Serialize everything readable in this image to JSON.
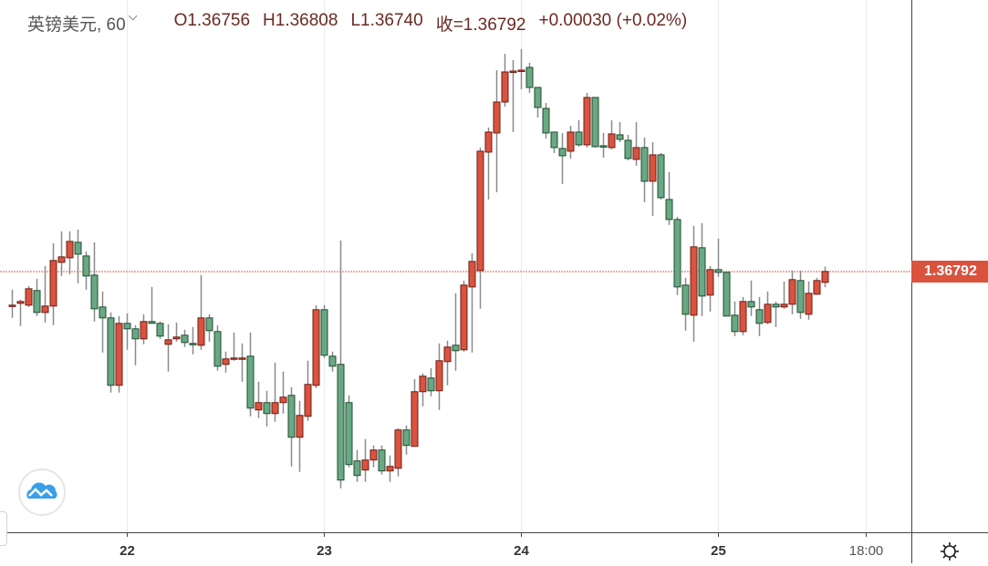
{
  "header": {
    "symbol": "英镑美元, 60",
    "open": "O1.36756",
    "high": "H1.36808",
    "low": "L1.36740",
    "close": "收=1.36792",
    "change": "+0.00030 (+0.02%)"
  },
  "colors": {
    "up": "#d9533f",
    "up_border": "#6e1c14",
    "down": "#6aa884",
    "down_border": "#1e4d31",
    "wick": "#8a8a8a",
    "price_line": "#e0604a",
    "grid": "#e3eef6"
  },
  "icons": {
    "logo": "cloud-chart-logo-icon",
    "settings": "gear-icon",
    "interval_dropdown": "chevron-down-icon"
  },
  "chart_data": {
    "type": "candlestick",
    "interval": "60",
    "up_color_convention": "red-up-green-down",
    "ylim": [
      1.3593,
      1.37686
    ],
    "current_price_label": "1.36792",
    "current_price": 1.36792,
    "x_tick_labels": [
      {
        "label": "22",
        "time": "22 00:00"
      },
      {
        "label": "23",
        "time": "23 00:00"
      },
      {
        "label": "24",
        "time": "24 00:00"
      },
      {
        "label": "25",
        "time": "25 00:00"
      },
      {
        "label": "18:00",
        "time": "25 18:00"
      }
    ],
    "grid": true,
    "times": [
      "21 10:00",
      "21 11:00",
      "21 12:00",
      "21 13:00",
      "21 14:00",
      "21 15:00",
      "21 16:00",
      "21 17:00",
      "21 18:00",
      "21 19:00",
      "21 20:00",
      "21 21:00",
      "21 22:00",
      "21 23:00",
      "22 00:00",
      "22 01:00",
      "22 02:00",
      "22 03:00",
      "22 04:00",
      "22 05:00",
      "22 06:00",
      "22 07:00",
      "22 08:00",
      "22 09:00",
      "22 10:00",
      "22 11:00",
      "22 12:00",
      "22 13:00",
      "22 14:00",
      "22 15:00",
      "22 16:00",
      "22 17:00",
      "22 18:00",
      "22 19:00",
      "22 20:00",
      "22 21:00",
      "22 22:00",
      "22 23:00",
      "23 00:00",
      "23 01:00",
      "23 02:00",
      "23 03:00",
      "23 04:00",
      "23 05:00",
      "23 06:00",
      "23 07:00",
      "23 08:00",
      "23 09:00",
      "23 10:00",
      "23 11:00",
      "23 12:00",
      "23 13:00",
      "23 14:00",
      "23 15:00",
      "23 16:00",
      "23 17:00",
      "23 18:00",
      "23 19:00",
      "23 20:00",
      "23 21:00",
      "23 22:00",
      "23 23:00",
      "24 00:00",
      "24 01:00",
      "24 02:00",
      "24 03:00",
      "24 04:00",
      "24 05:00",
      "24 06:00",
      "24 07:00",
      "24 08:00",
      "24 09:00",
      "24 10:00",
      "24 11:00",
      "24 12:00",
      "24 13:00",
      "24 14:00",
      "24 15:00",
      "24 16:00",
      "24 17:00",
      "24 18:00",
      "24 19:00",
      "24 20:00",
      "24 21:00",
      "24 22:00",
      "24 23:00",
      "25 00:00",
      "25 01:00",
      "25 02:00",
      "25 03:00",
      "25 04:00",
      "25 05:00",
      "25 06:00",
      "25 07:00",
      "25 08:00",
      "25 09:00",
      "25 10:00",
      "25 11:00",
      "25 12:00",
      "25 13:00"
    ],
    "ohlc": [
      [
        1.36678,
        1.36732,
        1.36639,
        1.36681
      ],
      [
        1.36687,
        1.36699,
        1.36612,
        1.36693
      ],
      [
        1.36681,
        1.36744,
        1.36675,
        1.36735
      ],
      [
        1.36729,
        1.36768,
        1.36645,
        1.36657
      ],
      [
        1.36657,
        1.3681,
        1.36624,
        1.36678
      ],
      [
        1.36678,
        1.36885,
        1.36615,
        1.36828
      ],
      [
        1.36822,
        1.36924,
        1.36777,
        1.3684
      ],
      [
        1.36837,
        1.36924,
        1.36783,
        1.36891
      ],
      [
        1.36888,
        1.3693,
        1.36753,
        1.36849
      ],
      [
        1.36843,
        1.36858,
        1.36732,
        1.36777
      ],
      [
        1.3678,
        1.36888,
        1.36627,
        1.36669
      ],
      [
        1.36675,
        1.36726,
        1.36525,
        1.36639
      ],
      [
        1.36639,
        1.36657,
        1.36393,
        1.36417
      ],
      [
        1.36417,
        1.36645,
        1.36393,
        1.36621
      ],
      [
        1.36621,
        1.36654,
        1.36534,
        1.36603
      ],
      [
        1.36603,
        1.36615,
        1.36483,
        1.3657
      ],
      [
        1.3657,
        1.36651,
        1.36552,
        1.36627
      ],
      [
        1.36627,
        1.36741,
        1.36624,
        1.36621
      ],
      [
        1.36621,
        1.36627,
        1.3657,
        1.36579
      ],
      [
        1.36552,
        1.36618,
        1.36462,
        1.36567
      ],
      [
        1.3657,
        1.36624,
        1.36561,
        1.36576
      ],
      [
        1.36582,
        1.366,
        1.36543,
        1.36558
      ],
      [
        1.36555,
        1.36609,
        1.36519,
        1.36552
      ],
      [
        1.36549,
        1.3678,
        1.36534,
        1.36639
      ],
      [
        1.36639,
        1.36651,
        1.36561,
        1.36597
      ],
      [
        1.36594,
        1.36615,
        1.36465,
        1.3648
      ],
      [
        1.36486,
        1.36528,
        1.36459,
        1.36504
      ],
      [
        1.36504,
        1.36591,
        1.36498,
        1.36507
      ],
      [
        1.36504,
        1.36555,
        1.36429,
        1.36507
      ],
      [
        1.36513,
        1.36591,
        1.36315,
        1.36342
      ],
      [
        1.36336,
        1.36429,
        1.36309,
        1.3636
      ],
      [
        1.3636,
        1.36399,
        1.36282,
        1.36324
      ],
      [
        1.36324,
        1.36492,
        1.36297,
        1.3636
      ],
      [
        1.3636,
        1.36462,
        1.36324,
        1.36378
      ],
      [
        1.36384,
        1.36411,
        1.3615,
        1.36246
      ],
      [
        1.36246,
        1.36366,
        1.36132,
        1.36318
      ],
      [
        1.36315,
        1.36498,
        1.363,
        1.3642
      ],
      [
        1.36417,
        1.36681,
        1.36408,
        1.36666
      ],
      [
        1.36666,
        1.36681,
        1.36507,
        1.36516
      ],
      [
        1.36513,
        1.36528,
        1.36462,
        1.3648
      ],
      [
        1.36486,
        1.36894,
        1.36078,
        1.36105
      ],
      [
        1.3636,
        1.36384,
        1.36147,
        1.36156
      ],
      [
        1.36168,
        1.36204,
        1.36099,
        1.3612
      ],
      [
        1.36138,
        1.3624,
        1.36099,
        1.36171
      ],
      [
        1.36171,
        1.36219,
        1.36147,
        1.36204
      ],
      [
        1.36204,
        1.36219,
        1.36123,
        1.36135
      ],
      [
        1.36135,
        1.36186,
        1.36099,
        1.3615
      ],
      [
        1.36144,
        1.36276,
        1.36117,
        1.3627
      ],
      [
        1.3627,
        1.36285,
        1.36189,
        1.36219
      ],
      [
        1.36216,
        1.36438,
        1.36216,
        1.36396
      ],
      [
        1.36396,
        1.36456,
        1.36348,
        1.36447
      ],
      [
        1.36441,
        1.36474,
        1.36381,
        1.36399
      ],
      [
        1.36399,
        1.36555,
        1.36336,
        1.36498
      ],
      [
        1.36495,
        1.36564,
        1.36417,
        1.36543
      ],
      [
        1.36549,
        1.3672,
        1.36465,
        1.36531
      ],
      [
        1.36534,
        1.36762,
        1.36528,
        1.36747
      ],
      [
        1.36741,
        1.36852,
        1.36525,
        1.36825
      ],
      [
        1.36795,
        1.372,
        1.36669,
        1.37188
      ],
      [
        1.37185,
        1.37266,
        1.37029,
        1.37251
      ],
      [
        1.37248,
        1.37455,
        1.37053,
        1.3735
      ],
      [
        1.3735,
        1.37509,
        1.37335,
        1.37449
      ],
      [
        1.37449,
        1.37488,
        1.37251,
        1.37452
      ],
      [
        1.37452,
        1.37524,
        1.37392,
        1.37455
      ],
      [
        1.37464,
        1.37479,
        1.3738,
        1.37398
      ],
      [
        1.37398,
        1.37398,
        1.37299,
        1.37332
      ],
      [
        1.37329,
        1.37347,
        1.3723,
        1.37248
      ],
      [
        1.37251,
        1.37251,
        1.37182,
        1.372
      ],
      [
        1.37197,
        1.37248,
        1.3708,
        1.37173
      ],
      [
        1.37188,
        1.37272,
        1.37164,
        1.37251
      ],
      [
        1.37251,
        1.3729,
        1.37203,
        1.37209
      ],
      [
        1.37209,
        1.3738,
        1.372,
        1.37365
      ],
      [
        1.37365,
        1.37365,
        1.372,
        1.37203
      ],
      [
        1.37206,
        1.37248,
        1.37167,
        1.37203
      ],
      [
        1.372,
        1.3729,
        1.37194,
        1.37245
      ],
      [
        1.37242,
        1.37284,
        1.37218,
        1.37227
      ],
      [
        1.37224,
        1.37242,
        1.37158,
        1.37164
      ],
      [
        1.37161,
        1.37284,
        1.3714,
        1.372
      ],
      [
        1.372,
        1.37233,
        1.3702,
        1.37089
      ],
      [
        1.37089,
        1.37218,
        1.36975,
        1.37176
      ],
      [
        1.37176,
        1.37182,
        1.37029,
        1.37035
      ],
      [
        1.37029,
        1.37119,
        1.36945,
        1.36963
      ],
      [
        1.36963,
        1.36972,
        1.36714,
        1.36741
      ],
      [
        1.36747,
        1.36771,
        1.36597,
        1.36651
      ],
      [
        1.36648,
        1.36942,
        1.36561,
        1.36873
      ],
      [
        1.3687,
        1.36951,
        1.36645,
        1.36711
      ],
      [
        1.36714,
        1.3681,
        1.3666,
        1.36798
      ],
      [
        1.36798,
        1.369,
        1.36774,
        1.36789
      ],
      [
        1.36789,
        1.36789,
        1.36645,
        1.36645
      ],
      [
        1.36648,
        1.36693,
        1.36579,
        1.36594
      ],
      [
        1.36594,
        1.36708,
        1.36582,
        1.36693
      ],
      [
        1.36693,
        1.36762,
        1.36645,
        1.36675
      ],
      [
        1.36666,
        1.36708,
        1.36579,
        1.36621
      ],
      [
        1.36624,
        1.36726,
        1.36618,
        1.36684
      ],
      [
        1.36684,
        1.36693,
        1.36609,
        1.36675
      ],
      [
        1.36675,
        1.36759,
        1.36669,
        1.36684
      ],
      [
        1.36684,
        1.36795,
        1.36651,
        1.36765
      ],
      [
        1.36762,
        1.36795,
        1.36636,
        1.36657
      ],
      [
        1.36651,
        1.36759,
        1.36633,
        1.3672
      ],
      [
        1.36717,
        1.36771,
        1.36717,
        1.36762
      ],
      [
        1.36756,
        1.36808,
        1.3674,
        1.36792
      ]
    ]
  }
}
